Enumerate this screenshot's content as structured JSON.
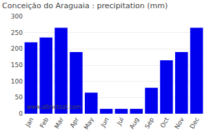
{
  "chart_data": {
    "type": "bar",
    "title": "Conceição do Araguaia : precipitation (mm)",
    "categories": [
      "Jan",
      "Feb",
      "Mar",
      "Apr",
      "May",
      "Jun",
      "Jul",
      "Aug",
      "Sep",
      "Oct",
      "Nov",
      "Dec"
    ],
    "values": [
      220,
      235,
      265,
      190,
      65,
      15,
      15,
      15,
      80,
      165,
      190,
      265
    ],
    "color": "#0000ee",
    "ylim": [
      0,
      300
    ],
    "yticks": [
      0,
      50,
      100,
      150,
      200,
      250,
      300
    ],
    "grid": true,
    "annotations": [
      "www.allmetsat.com"
    ]
  }
}
